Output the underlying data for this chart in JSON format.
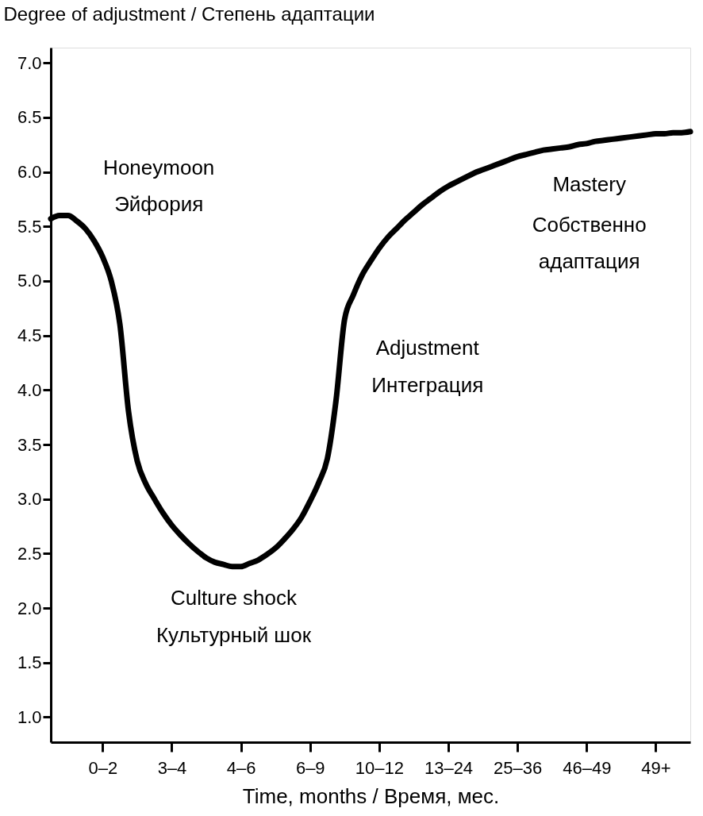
{
  "chart_data": {
    "type": "line",
    "ylabel": "Degree of adjustment / Степень адаптации",
    "xlabel": "Time, months / Время, мес.",
    "categories": [
      null,
      null,
      null,
      null,
      null,
      null,
      "0–2",
      null,
      null,
      null,
      null,
      null,
      null,
      null,
      "3–4",
      null,
      null,
      null,
      null,
      null,
      null,
      null,
      "4–6",
      null,
      null,
      null,
      null,
      null,
      null,
      null,
      "6–9",
      null,
      null,
      null,
      null,
      null,
      null,
      null,
      "10–12",
      null,
      null,
      null,
      null,
      null,
      null,
      null,
      "13–24",
      null,
      null,
      null,
      null,
      null,
      null,
      null,
      "25–36",
      null,
      null,
      null,
      null,
      null,
      null,
      null,
      "46–49",
      null,
      null,
      null,
      null,
      null,
      null,
      null,
      "49+",
      null,
      null,
      null,
      null
    ],
    "series": [
      {
        "color": "#000000",
        "values": [
          5.57,
          5.6,
          5.6,
          5.55,
          5.48,
          5.37,
          5.22,
          5.0,
          4.6,
          3.8,
          3.35,
          3.14,
          3.0,
          2.87,
          2.76,
          2.67,
          2.59,
          2.52,
          2.46,
          2.42,
          2.4,
          2.38,
          2.38,
          2.41,
          2.44,
          2.49,
          2.55,
          2.63,
          2.72,
          2.83,
          2.98,
          3.15,
          3.37,
          3.9,
          4.65,
          4.87,
          5.05,
          5.18,
          5.3,
          5.4,
          5.48,
          5.56,
          5.63,
          5.7,
          5.76,
          5.82,
          5.87,
          5.91,
          5.95,
          5.99,
          6.02,
          6.05,
          6.08,
          6.11,
          6.14,
          6.16,
          6.18,
          6.2,
          6.21,
          6.22,
          6.23,
          6.25,
          6.26,
          6.28,
          6.29,
          6.3,
          6.31,
          6.32,
          6.33,
          6.34,
          6.35,
          6.35,
          6.36,
          6.36,
          6.37
        ]
      }
    ],
    "ylim": [
      0.77,
      7.14
    ],
    "yticks": [
      {
        "value": 1.0,
        "label": "1.0"
      },
      {
        "value": 1.5,
        "label": "1.5"
      },
      {
        "value": 2.0,
        "label": "2.0"
      },
      {
        "value": 2.5,
        "label": "2.5"
      },
      {
        "value": 3.0,
        "label": "3.0"
      },
      {
        "value": 3.5,
        "label": "3.5"
      },
      {
        "value": 4.0,
        "label": "4.0"
      },
      {
        "value": 4.5,
        "label": "4.5"
      },
      {
        "value": 5.0,
        "label": "5.0"
      },
      {
        "value": 5.5,
        "label": "5.5"
      },
      {
        "value": 6.0,
        "label": "6.0"
      },
      {
        "value": 6.5,
        "label": "6.5"
      },
      {
        "value": 7.0,
        "label": "7.0"
      }
    ],
    "annotations": [
      "Honeymoon",
      "Эйфория",
      "Culture shock",
      "Культурный шок",
      "Adjustment",
      "Интеграция",
      "Mastery",
      "Собственно",
      "адаптация"
    ],
    "grid": false,
    "marker": "none",
    "line_style": "solid"
  }
}
